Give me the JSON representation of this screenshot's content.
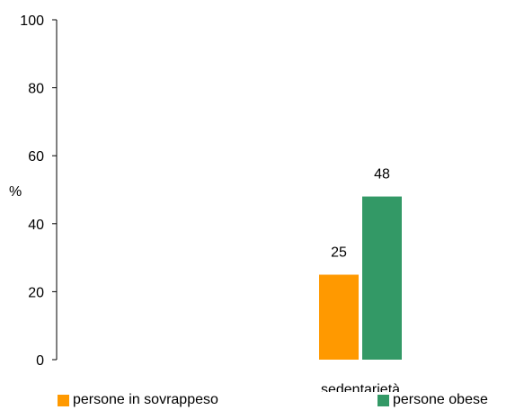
{
  "chart_data": {
    "type": "bar",
    "categories": [
      "sedentarietà"
    ],
    "series": [
      {
        "name": "persone in sovrappeso",
        "values": [
          25
        ],
        "color": "#FF9900"
      },
      {
        "name": "persone obese",
        "values": [
          48
        ],
        "color": "#339966"
      }
    ],
    "ylabel": "%",
    "ylim": [
      0,
      100
    ],
    "yticks": [
      0,
      20,
      40,
      60,
      80,
      100
    ],
    "data_labels": [
      "25",
      "48"
    ],
    "grid": false,
    "legend_position": "bottom"
  }
}
